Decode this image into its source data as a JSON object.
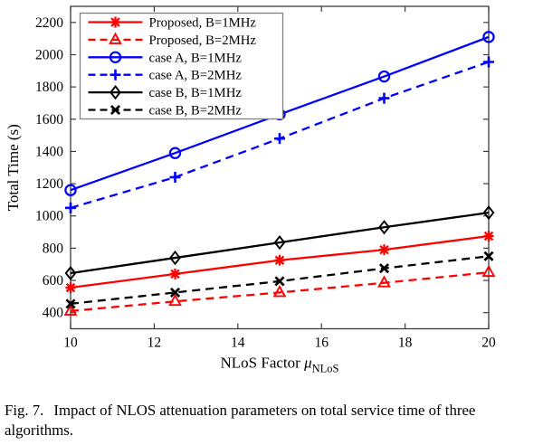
{
  "figure": {
    "caption_prefix": "Fig. 7.",
    "caption_text": "Impact of NLOS attenuation parameters on total service time of three algorithms."
  },
  "chart_data": {
    "type": "line",
    "title": "",
    "xlabel_main": "NLoS Factor ",
    "xlabel_symbol": "μ",
    "xlabel_subscript": "NLoS",
    "ylabel": "Total Time (s)",
    "xlim": [
      10,
      20
    ],
    "ylim": [
      300,
      2300
    ],
    "xticks": [
      10,
      12,
      14,
      16,
      18,
      20
    ],
    "yticks": [
      400,
      600,
      800,
      1000,
      1200,
      1400,
      1600,
      1800,
      2000,
      2200
    ],
    "grid": false,
    "legend_position": "top-left",
    "axis_color": "#3c3c3c",
    "legend_border_color": "#808080",
    "x": [
      10,
      12.5,
      15,
      17.5,
      20
    ],
    "series": [
      {
        "name": "Proposed, B=1MHz",
        "color": "#ff0000",
        "style": "solid",
        "marker": "asterisk",
        "values": [
          555,
          640,
          725,
          790,
          875
        ]
      },
      {
        "name": "Proposed, B=2MHz",
        "color": "#ff0000",
        "style": "dashed",
        "marker": "triangle",
        "values": [
          410,
          470,
          525,
          585,
          650
        ]
      },
      {
        "name": "case A, B=1MHz",
        "color": "#0000ff",
        "style": "solid",
        "marker": "circle",
        "values": [
          1160,
          1390,
          1630,
          1865,
          2110
        ]
      },
      {
        "name": "case A, B=2MHz",
        "color": "#0000ff",
        "style": "dashed",
        "marker": "plus",
        "values": [
          1050,
          1240,
          1480,
          1730,
          1955
        ]
      },
      {
        "name": "case B, B=1MHz",
        "color": "#000000",
        "style": "solid",
        "marker": "diamond",
        "values": [
          645,
          740,
          835,
          930,
          1020
        ]
      },
      {
        "name": "case B, B=2MHz",
        "color": "#000000",
        "style": "dashed",
        "marker": "x",
        "values": [
          455,
          525,
          595,
          675,
          750
        ]
      }
    ]
  }
}
